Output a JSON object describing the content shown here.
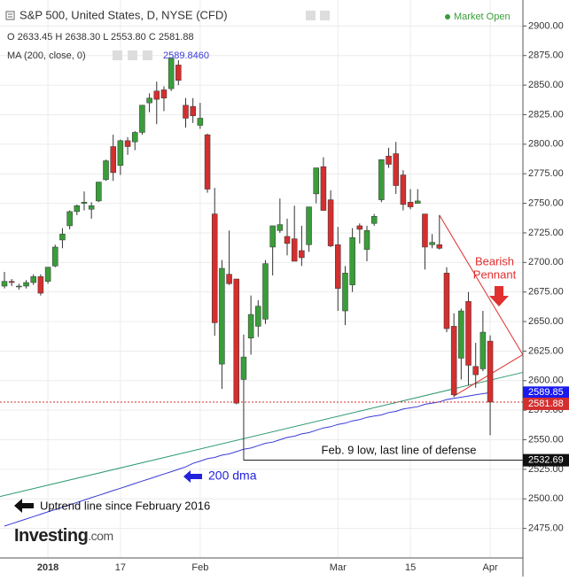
{
  "chart_data": {
    "type": "candlestick",
    "title": "S&P 500, United States, D, NYSE (CFD)",
    "status": "Market Open",
    "ohlc_legend": "O 2633.45 H 2638.30 L 2553.80 C 2581.88",
    "up_color": "#3a9d3a",
    "down_color": "#d32f2f",
    "categories": [
      null,
      null,
      null,
      null,
      null,
      null,
      "2018",
      null,
      null,
      null,
      null,
      null,
      null,
      null,
      null,
      null,
      "17",
      null,
      null,
      null,
      null,
      null,
      null,
      null,
      null,
      null,
      null,
      "Feb",
      null,
      null,
      null,
      null,
      null,
      null,
      null,
      null,
      null,
      null,
      null,
      null,
      null,
      null,
      null,
      null,
      null,
      null,
      "Mar",
      null,
      null,
      null,
      null,
      null,
      null,
      null,
      null,
      null,
      "15",
      null,
      null,
      null,
      null,
      null,
      null,
      null,
      null,
      null,
      null,
      "Apr"
    ],
    "open": [
      2680,
      2684,
      2680,
      2680,
      2683,
      2688,
      2684,
      2697,
      2719,
      2731,
      2743,
      2750,
      2745,
      2752,
      2770,
      2798,
      2782,
      2803,
      2802,
      2810,
      2835,
      2845,
      2846,
      2847,
      2867,
      2833,
      2832,
      2816,
      2808,
      2741,
      2614,
      2690,
      2686,
      2601,
      2636,
      2646,
      2652,
      2713,
      2727,
      2722,
      2720,
      2710,
      2715,
      2758,
      2781,
      2753,
      2715,
      2659,
      2681,
      2731,
      2711,
      2733,
      2753,
      2790,
      2792,
      2774,
      2751,
      2750,
      2741,
      2715,
      2715,
      2691,
      2646,
      2619,
      2667,
      2612,
      2610,
      2633.45
    ],
    "high": [
      2692,
      2686,
      2682,
      2685,
      2690,
      2690,
      2696,
      2715,
      2729,
      2744,
      2749,
      2760,
      2751,
      2768,
      2787,
      2808,
      2804,
      2806,
      2811,
      2833,
      2843,
      2853,
      2849,
      2873,
      2871,
      2839,
      2839,
      2835,
      2809,
      2763,
      2702,
      2727,
      2686,
      2639,
      2672,
      2668,
      2702,
      2731,
      2754,
      2737,
      2748,
      2731,
      2747,
      2780,
      2789,
      2761,
      2730,
      2697,
      2729,
      2733,
      2731,
      2741,
      2787,
      2797,
      2802,
      2778,
      2762,
      2762,
      2741,
      2724,
      2740,
      2696,
      2657,
      2661,
      2675,
      2632,
      2659,
      2638.3
    ],
    "low": [
      2678,
      2680,
      2677,
      2678,
      2681,
      2672,
      2682,
      2696,
      2712,
      2728,
      2740,
      2744,
      2737,
      2751,
      2769,
      2769,
      2774,
      2791,
      2795,
      2808,
      2827,
      2817,
      2828,
      2845,
      2850,
      2814,
      2818,
      2813,
      2759,
      2638,
      2593,
      2681,
      2580,
      2532.69,
      2622,
      2637,
      2648,
      2689,
      2725,
      2706,
      2701,
      2697,
      2709,
      2750,
      2744,
      2713,
      2659,
      2647,
      2675,
      2716,
      2701,
      2731,
      2751,
      2780,
      2758,
      2744,
      2745,
      2750,
      2694,
      2712,
      2711,
      2641,
      2586,
      2601,
      2596,
      2594,
      2608,
      2553.8
    ],
    "close": [
      2684,
      2683,
      2680,
      2683,
      2688,
      2674,
      2696,
      2713,
      2724,
      2743,
      2748,
      2751,
      2748,
      2768,
      2786,
      2776,
      2803,
      2798,
      2810,
      2833,
      2839,
      2838,
      2839,
      2873,
      2854,
      2822,
      2824,
      2822,
      2762,
      2649,
      2695,
      2682,
      2581,
      2620,
      2656,
      2663,
      2699,
      2731,
      2732,
      2716,
      2701,
      2704,
      2747,
      2780,
      2744,
      2714,
      2678,
      2691,
      2721,
      2728,
      2727,
      2739,
      2787,
      2783,
      2765,
      2749,
      2747,
      2752,
      2713,
      2717,
      2712,
      2644,
      2588,
      2659,
      2613,
      2605,
      2641,
      2581.88
    ],
    "ma": {
      "legend": "MA (200, close, 0)",
      "legend_value": {
        "value": 2589.846,
        "label": "2589.8460"
      },
      "label": "200 dma",
      "color": "#3a3ad6",
      "values": [
        2477,
        2479,
        2481,
        2483,
        2485,
        2487,
        2489,
        2491,
        2493,
        2495,
        2497,
        2499,
        2501,
        2503,
        2505,
        2507,
        2509,
        2511,
        2513,
        2515,
        2517,
        2519,
        2521,
        2523,
        2525,
        2527,
        2530,
        2532,
        2534,
        2535,
        2537,
        2538,
        2540,
        2542,
        2543,
        2545,
        2547,
        2548,
        2550,
        2552,
        2553,
        2555,
        2556,
        2558,
        2560,
        2561,
        2563,
        2564,
        2566,
        2567,
        2569,
        2570,
        2571,
        2573,
        2574,
        2576,
        2577,
        2578,
        2580,
        2581,
        2582,
        2584,
        2585,
        2586,
        2587,
        2588,
        2589,
        2589.85
      ]
    },
    "uptrend_line": {
      "label": "Uptrend line since February 2016",
      "color": "#2e9a6e",
      "start": 2502,
      "end": 2607
    },
    "pennant": {
      "label_lines": [
        "Bearish",
        "Pennant"
      ],
      "color": "#e03030",
      "upper": [
        [
          60,
          2740
        ],
        [
          71.5,
          2622
        ]
      ],
      "lower": [
        [
          62,
          2587
        ],
        [
          71.5,
          2622
        ]
      ]
    },
    "support": {
      "label": "Feb. 9 low, last line of defense",
      "index": 33
    },
    "ylim": [
      2450,
      2922
    ],
    "yticks": [
      {
        "value": 2475,
        "label": "2475.00"
      },
      {
        "value": 2500,
        "label": "2500.00"
      },
      {
        "value": 2525,
        "label": "2525.00"
      },
      {
        "value": 2550,
        "label": "2550.00"
      },
      {
        "value": 2575,
        "label": "2575.00"
      },
      {
        "value": 2600,
        "label": "2600.00"
      },
      {
        "value": 2625,
        "label": "2625.00"
      },
      {
        "value": 2650,
        "label": "2650.00"
      },
      {
        "value": 2675,
        "label": "2675.00"
      },
      {
        "value": 2700,
        "label": "2700.00"
      },
      {
        "value": 2725,
        "label": "2725.00"
      },
      {
        "value": 2750,
        "label": "2750.00"
      },
      {
        "value": 2775,
        "label": "2775.00"
      },
      {
        "value": 2800,
        "label": "2800.00"
      },
      {
        "value": 2825,
        "label": "2825.00"
      },
      {
        "value": 2850,
        "label": "2850.00"
      },
      {
        "value": 2875,
        "label": "2875.00"
      },
      {
        "value": 2900,
        "label": "2900.00"
      }
    ],
    "grid": true,
    "brand": "Investing",
    "brand_suffix": ".com"
  }
}
